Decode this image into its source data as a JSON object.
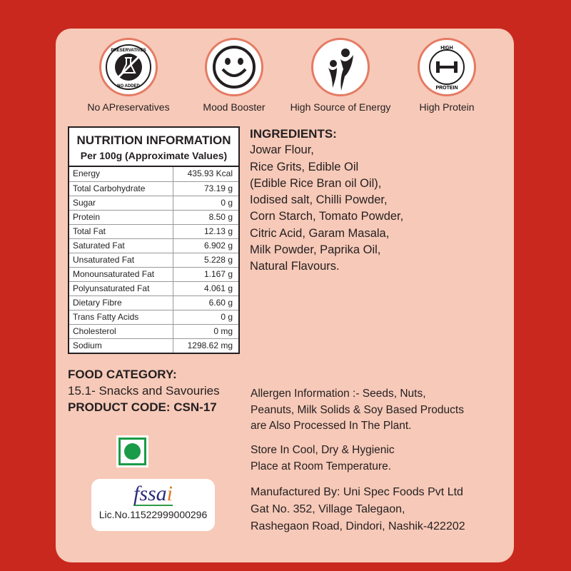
{
  "colors": {
    "background": "#c9281f",
    "card": "#f7c9b8",
    "icon_ring": "#e57a63",
    "veg_green": "#1a9b48"
  },
  "badges": [
    {
      "label": "No APreservatives",
      "icon": "no-preservatives-icon",
      "icon_text_top": "PRESERVATIVES",
      "icon_text_bottom": "NO ADDED"
    },
    {
      "label": "Mood Booster",
      "icon": "smiley-icon"
    },
    {
      "label": "High Source of Energy",
      "icon": "energy-people-icon"
    },
    {
      "label": "High Protein",
      "icon": "dumbbell-icon",
      "icon_text_top": "HIGH",
      "icon_text_bottom": "PROTEIN"
    }
  ],
  "nutrition": {
    "title": "NUTRITION INFORMATION",
    "subtitle": "Per 100g (Approximate Values)",
    "rows": [
      {
        "name": "Energy",
        "value": "435.93 Kcal"
      },
      {
        "name": "Total Carbohydrate",
        "value": "73.19 g"
      },
      {
        "name": "Sugar",
        "value": "0 g"
      },
      {
        "name": "Protein",
        "value": "8.50 g"
      },
      {
        "name": "Total Fat",
        "value": "12.13 g"
      },
      {
        "name": "Saturated Fat",
        "value": "6.902 g"
      },
      {
        "name": "Unsaturated Fat",
        "value": "5.228 g"
      },
      {
        "name": "Monounsaturated Fat",
        "value": "1.167 g"
      },
      {
        "name": "Polyunsaturated Fat",
        "value": "4.061 g"
      },
      {
        "name": "Dietary Fibre",
        "value": "6.60 g"
      },
      {
        "name": "Trans Fatty Acids",
        "value": "0 g"
      },
      {
        "name": "Cholesterol",
        "value": "0 mg"
      },
      {
        "name": "Sodium",
        "value": "1298.62 mg"
      }
    ]
  },
  "ingredients": {
    "title": "INGREDIENTS:",
    "lines": [
      "Jowar Flour,",
      "Rice Grits, Edible Oil",
      "(Edible Rice Bran oil Oil),",
      "Iodised salt, Chilli Powder,",
      "Corn Starch, Tomato Powder,",
      "Citric Acid, Garam Masala,",
      "Milk Powder, Paprika Oil,",
      "Natural Flavours."
    ]
  },
  "food_category": {
    "title": "FOOD CATEGORY:",
    "value": "15.1- Snacks and Savouries",
    "product_code": "PRODUCT CODE: CSN-17"
  },
  "allergen": [
    "Allergen Information :- Seeds, Nuts,",
    "Peanuts, Milk Solids & Soy Based Products",
    "are Also Processed In The Plant."
  ],
  "storage": [
    "Store In Cool, Dry & Hygienic",
    "Place at Room Temperature."
  ],
  "manufacturer": [
    "Manufactured By: Uni Spec Foods Pvt Ltd",
    "Gat No. 352, Village Talegaon,",
    "Rashegaon Road, Dindori, Nashik-422202"
  ],
  "fssai": {
    "logo_text": "fssai",
    "license": "Lic.No.11522999000296"
  }
}
